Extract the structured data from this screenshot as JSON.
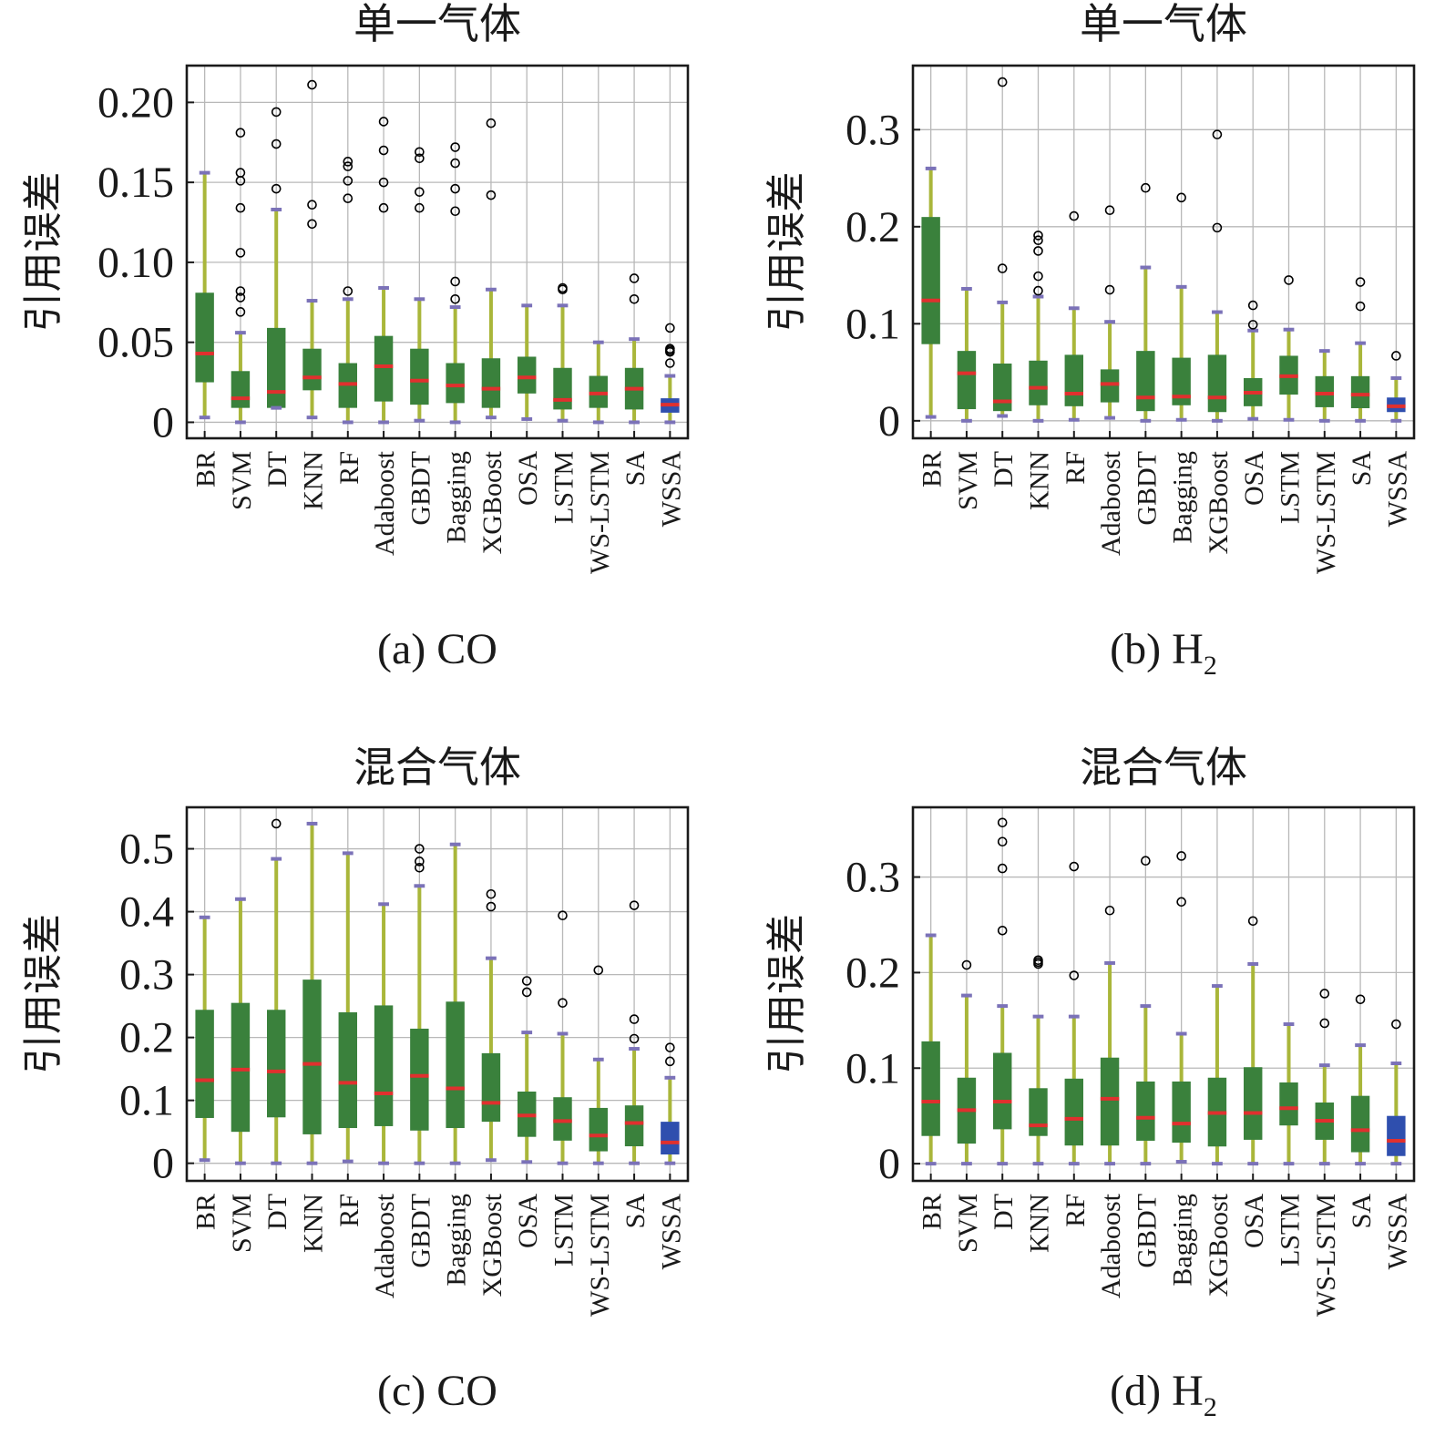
{
  "style": {
    "box_color": "#3a813c",
    "highlight_box_color": "#2f4fae",
    "whisker_color": "#a9b63a",
    "cap_color": "#7b72b8",
    "median_color": "#e0302e",
    "flier_color": "#000000"
  },
  "chart_data": [
    {
      "type": "box",
      "title": "单一气体",
      "ylabel": "引用误差",
      "caption": {
        "prefix": "(a) CO",
        "sub": ""
      },
      "ylim": [
        -0.01,
        0.223
      ],
      "yticks": [
        0,
        0.05,
        0.1,
        0.15,
        0.2
      ],
      "ytick_labels": [
        "0",
        "0.05",
        "0.10",
        "0.15",
        "0.20"
      ],
      "grid": true,
      "categories": [
        "BR",
        "SVM",
        "DT",
        "KNN",
        "RF",
        "Adaboost",
        "GBDT",
        "Bagging",
        "XGBoost",
        "OSA",
        "LSTM",
        "WS-LSTM",
        "SA",
        "WSSA"
      ],
      "highlight": "WSSA",
      "boxes": [
        {
          "label": "BR",
          "min": 0.003,
          "q1": 0.025,
          "median": 0.043,
          "q3": 0.081,
          "max": 0.156,
          "fliers": []
        },
        {
          "label": "SVM",
          "min": 0.0,
          "q1": 0.009,
          "median": 0.015,
          "q3": 0.032,
          "max": 0.056,
          "fliers": [
            0.069,
            0.078,
            0.082,
            0.106,
            0.134,
            0.151,
            0.156,
            0.181
          ]
        },
        {
          "label": "DT",
          "min": 0.009,
          "q1": 0.009,
          "median": 0.019,
          "q3": 0.059,
          "max": 0.133,
          "fliers": [
            0.146,
            0.174,
            0.194
          ]
        },
        {
          "label": "KNN",
          "min": 0.003,
          "q1": 0.02,
          "median": 0.028,
          "q3": 0.046,
          "max": 0.076,
          "fliers": [
            0.124,
            0.136,
            0.211
          ]
        },
        {
          "label": "RF",
          "min": 0.0,
          "q1": 0.009,
          "median": 0.024,
          "q3": 0.037,
          "max": 0.077,
          "fliers": [
            0.082,
            0.14,
            0.151,
            0.16,
            0.163
          ]
        },
        {
          "label": "Adaboost",
          "min": 0.0,
          "q1": 0.013,
          "median": 0.035,
          "q3": 0.054,
          "max": 0.084,
          "fliers": [
            0.134,
            0.15,
            0.17,
            0.188
          ]
        },
        {
          "label": "GBDT",
          "min": 0.001,
          "q1": 0.011,
          "median": 0.026,
          "q3": 0.046,
          "max": 0.077,
          "fliers": [
            0.134,
            0.144,
            0.165,
            0.169
          ]
        },
        {
          "label": "Bagging",
          "min": 0.0,
          "q1": 0.012,
          "median": 0.023,
          "q3": 0.037,
          "max": 0.072,
          "fliers": [
            0.077,
            0.088,
            0.132,
            0.146,
            0.162,
            0.172
          ]
        },
        {
          "label": "XGBoost",
          "min": 0.003,
          "q1": 0.009,
          "median": 0.021,
          "q3": 0.04,
          "max": 0.083,
          "fliers": [
            0.142,
            0.187
          ]
        },
        {
          "label": "OSA",
          "min": 0.002,
          "q1": 0.018,
          "median": 0.028,
          "q3": 0.041,
          "max": 0.073,
          "fliers": []
        },
        {
          "label": "LSTM",
          "min": 0.001,
          "q1": 0.008,
          "median": 0.014,
          "q3": 0.034,
          "max": 0.073,
          "fliers": [
            0.083,
            0.084
          ]
        },
        {
          "label": "WS-LSTM",
          "min": 0.0,
          "q1": 0.009,
          "median": 0.018,
          "q3": 0.029,
          "max": 0.05,
          "fliers": []
        },
        {
          "label": "SA",
          "min": 0.0,
          "q1": 0.008,
          "median": 0.021,
          "q3": 0.034,
          "max": 0.052,
          "fliers": [
            0.077,
            0.09
          ]
        },
        {
          "label": "WSSA",
          "min": 0.0,
          "q1": 0.006,
          "median": 0.011,
          "q3": 0.015,
          "max": 0.029,
          "fliers": [
            0.037,
            0.044,
            0.045,
            0.046,
            0.059
          ]
        }
      ]
    },
    {
      "type": "box",
      "title": "单一气体",
      "ylabel": "引用误差",
      "caption": {
        "prefix": "(b) H",
        "sub": "2"
      },
      "ylim": [
        -0.018,
        0.366
      ],
      "yticks": [
        0,
        0.1,
        0.2,
        0.3
      ],
      "ytick_labels": [
        "0",
        "0.1",
        "0.2",
        "0.3"
      ],
      "grid": true,
      "categories": [
        "BR",
        "SVM",
        "DT",
        "KNN",
        "RF",
        "Adaboost",
        "GBDT",
        "Bagging",
        "XGBoost",
        "OSA",
        "LSTM",
        "WS-LSTM",
        "SA",
        "WSSA"
      ],
      "highlight": "WSSA",
      "boxes": [
        {
          "label": "BR",
          "min": 0.004,
          "q1": 0.079,
          "median": 0.124,
          "q3": 0.21,
          "max": 0.26,
          "fliers": []
        },
        {
          "label": "SVM",
          "min": 0.0,
          "q1": 0.012,
          "median": 0.049,
          "q3": 0.072,
          "max": 0.136,
          "fliers": []
        },
        {
          "label": "DT",
          "min": 0.005,
          "q1": 0.01,
          "median": 0.02,
          "q3": 0.059,
          "max": 0.122,
          "fliers": [
            0.157,
            0.349
          ]
        },
        {
          "label": "KNN",
          "min": 0.0,
          "q1": 0.016,
          "median": 0.034,
          "q3": 0.062,
          "max": 0.128,
          "fliers": [
            0.134,
            0.149,
            0.175,
            0.186,
            0.191
          ]
        },
        {
          "label": "RF",
          "min": 0.001,
          "q1": 0.015,
          "median": 0.028,
          "q3": 0.068,
          "max": 0.116,
          "fliers": [
            0.211
          ]
        },
        {
          "label": "Adaboost",
          "min": 0.003,
          "q1": 0.019,
          "median": 0.038,
          "q3": 0.053,
          "max": 0.102,
          "fliers": [
            0.135,
            0.217
          ]
        },
        {
          "label": "GBDT",
          "min": 0.0,
          "q1": 0.01,
          "median": 0.024,
          "q3": 0.072,
          "max": 0.158,
          "fliers": [
            0.24
          ]
        },
        {
          "label": "Bagging",
          "min": 0.001,
          "q1": 0.016,
          "median": 0.025,
          "q3": 0.065,
          "max": 0.138,
          "fliers": [
            0.23
          ]
        },
        {
          "label": "XGBoost",
          "min": 0.0,
          "q1": 0.009,
          "median": 0.024,
          "q3": 0.068,
          "max": 0.112,
          "fliers": [
            0.199,
            0.295
          ]
        },
        {
          "label": "OSA",
          "min": 0.002,
          "q1": 0.015,
          "median": 0.029,
          "q3": 0.044,
          "max": 0.093,
          "fliers": [
            0.099,
            0.119
          ]
        },
        {
          "label": "LSTM",
          "min": 0.001,
          "q1": 0.027,
          "median": 0.046,
          "q3": 0.067,
          "max": 0.094,
          "fliers": [
            0.145
          ]
        },
        {
          "label": "WS-LSTM",
          "min": 0.0,
          "q1": 0.014,
          "median": 0.028,
          "q3": 0.046,
          "max": 0.072,
          "fliers": []
        },
        {
          "label": "SA",
          "min": 0.0,
          "q1": 0.013,
          "median": 0.027,
          "q3": 0.046,
          "max": 0.08,
          "fliers": [
            0.118,
            0.143
          ]
        },
        {
          "label": "WSSA",
          "min": 0.0,
          "q1": 0.009,
          "median": 0.015,
          "q3": 0.024,
          "max": 0.044,
          "fliers": [
            0.067
          ]
        }
      ]
    },
    {
      "type": "box",
      "title": "混合气体",
      "ylabel": "引用误差",
      "caption": {
        "prefix": "(c) CO",
        "sub": ""
      },
      "ylim": [
        -0.028,
        0.566
      ],
      "yticks": [
        0,
        0.1,
        0.2,
        0.3,
        0.4,
        0.5
      ],
      "ytick_labels": [
        "0",
        "0.1",
        "0.2",
        "0.3",
        "0.4",
        "0.5"
      ],
      "grid": true,
      "categories": [
        "BR",
        "SVM",
        "DT",
        "KNN",
        "RF",
        "Adaboost",
        "GBDT",
        "Bagging",
        "XGBoost",
        "OSA",
        "LSTM",
        "WS-LSTM",
        "SA",
        "WSSA"
      ],
      "highlight": "WSSA",
      "boxes": [
        {
          "label": "BR",
          "min": 0.005,
          "q1": 0.072,
          "median": 0.132,
          "q3": 0.244,
          "max": 0.391,
          "fliers": []
        },
        {
          "label": "SVM",
          "min": 0.0,
          "q1": 0.05,
          "median": 0.149,
          "q3": 0.255,
          "max": 0.42,
          "fliers": []
        },
        {
          "label": "DT",
          "min": 0.0,
          "q1": 0.073,
          "median": 0.146,
          "q3": 0.244,
          "max": 0.484,
          "fliers": [
            0.54
          ]
        },
        {
          "label": "KNN",
          "min": 0.0,
          "q1": 0.046,
          "median": 0.158,
          "q3": 0.292,
          "max": 0.54,
          "fliers": []
        },
        {
          "label": "RF",
          "min": 0.003,
          "q1": 0.056,
          "median": 0.128,
          "q3": 0.24,
          "max": 0.493,
          "fliers": []
        },
        {
          "label": "Adaboost",
          "min": 0.0,
          "q1": 0.059,
          "median": 0.111,
          "q3": 0.251,
          "max": 0.412,
          "fliers": []
        },
        {
          "label": "GBDT",
          "min": 0.0,
          "q1": 0.052,
          "median": 0.139,
          "q3": 0.214,
          "max": 0.441,
          "fliers": [
            0.47,
            0.48,
            0.5
          ]
        },
        {
          "label": "Bagging",
          "min": 0.0,
          "q1": 0.056,
          "median": 0.119,
          "q3": 0.257,
          "max": 0.507,
          "fliers": []
        },
        {
          "label": "XGBoost",
          "min": 0.005,
          "q1": 0.066,
          "median": 0.096,
          "q3": 0.175,
          "max": 0.326,
          "fliers": [
            0.408,
            0.428
          ]
        },
        {
          "label": "OSA",
          "min": 0.002,
          "q1": 0.042,
          "median": 0.076,
          "q3": 0.114,
          "max": 0.208,
          "fliers": [
            0.272,
            0.29
          ]
        },
        {
          "label": "LSTM",
          "min": 0.0,
          "q1": 0.036,
          "median": 0.067,
          "q3": 0.105,
          "max": 0.206,
          "fliers": [
            0.255,
            0.394
          ]
        },
        {
          "label": "WS-LSTM",
          "min": 0.0,
          "q1": 0.019,
          "median": 0.044,
          "q3": 0.088,
          "max": 0.165,
          "fliers": [
            0.307
          ]
        },
        {
          "label": "SA",
          "min": 0.0,
          "q1": 0.027,
          "median": 0.064,
          "q3": 0.092,
          "max": 0.182,
          "fliers": [
            0.198,
            0.229,
            0.41
          ]
        },
        {
          "label": "WSSA",
          "min": 0.0,
          "q1": 0.014,
          "median": 0.033,
          "q3": 0.066,
          "max": 0.136,
          "fliers": [
            0.162,
            0.184
          ]
        }
      ]
    },
    {
      "type": "box",
      "title": "混合气体",
      "ylabel": "引用误差",
      "caption": {
        "prefix": "(d) H",
        "sub": "2"
      },
      "ylim": [
        -0.018,
        0.373
      ],
      "yticks": [
        0,
        0.1,
        0.2,
        0.3
      ],
      "ytick_labels": [
        "0",
        "0.1",
        "0.2",
        "0.3"
      ],
      "grid": true,
      "categories": [
        "BR",
        "SVM",
        "DT",
        "KNN",
        "RF",
        "Adaboost",
        "GBDT",
        "Bagging",
        "XGBoost",
        "OSA",
        "LSTM",
        "WS-LSTM",
        "SA",
        "WSSA"
      ],
      "highlight": "WSSA",
      "boxes": [
        {
          "label": "BR",
          "min": 0.0,
          "q1": 0.029,
          "median": 0.065,
          "q3": 0.128,
          "max": 0.239,
          "fliers": []
        },
        {
          "label": "SVM",
          "min": 0.0,
          "q1": 0.021,
          "median": 0.056,
          "q3": 0.09,
          "max": 0.176,
          "fliers": [
            0.208
          ]
        },
        {
          "label": "DT",
          "min": 0.0,
          "q1": 0.036,
          "median": 0.065,
          "q3": 0.116,
          "max": 0.165,
          "fliers": [
            0.244,
            0.309,
            0.337,
            0.357
          ]
        },
        {
          "label": "KNN",
          "min": 0.0,
          "q1": 0.029,
          "median": 0.04,
          "q3": 0.079,
          "max": 0.154,
          "fliers": [
            0.209,
            0.211,
            0.213
          ]
        },
        {
          "label": "RF",
          "min": 0.0,
          "q1": 0.019,
          "median": 0.047,
          "q3": 0.089,
          "max": 0.154,
          "fliers": [
            0.197,
            0.311
          ]
        },
        {
          "label": "Adaboost",
          "min": 0.0,
          "q1": 0.019,
          "median": 0.068,
          "q3": 0.111,
          "max": 0.21,
          "fliers": [
            0.265
          ]
        },
        {
          "label": "GBDT",
          "min": 0.0,
          "q1": 0.024,
          "median": 0.048,
          "q3": 0.086,
          "max": 0.165,
          "fliers": [
            0.317
          ]
        },
        {
          "label": "Bagging",
          "min": 0.002,
          "q1": 0.022,
          "median": 0.042,
          "q3": 0.086,
          "max": 0.136,
          "fliers": [
            0.274,
            0.322
          ]
        },
        {
          "label": "XGBoost",
          "min": 0.0,
          "q1": 0.018,
          "median": 0.053,
          "q3": 0.09,
          "max": 0.186,
          "fliers": []
        },
        {
          "label": "OSA",
          "min": 0.0,
          "q1": 0.025,
          "median": 0.053,
          "q3": 0.101,
          "max": 0.209,
          "fliers": [
            0.254
          ]
        },
        {
          "label": "LSTM",
          "min": 0.0,
          "q1": 0.04,
          "median": 0.058,
          "q3": 0.085,
          "max": 0.146,
          "fliers": []
        },
        {
          "label": "WS-LSTM",
          "min": 0.0,
          "q1": 0.025,
          "median": 0.045,
          "q3": 0.064,
          "max": 0.103,
          "fliers": [
            0.147,
            0.178
          ]
        },
        {
          "label": "SA",
          "min": 0.0,
          "q1": 0.012,
          "median": 0.035,
          "q3": 0.071,
          "max": 0.124,
          "fliers": [
            0.172
          ]
        },
        {
          "label": "WSSA",
          "min": 0.0,
          "q1": 0.008,
          "median": 0.024,
          "q3": 0.05,
          "max": 0.105,
          "fliers": [
            0.146
          ]
        }
      ]
    }
  ]
}
